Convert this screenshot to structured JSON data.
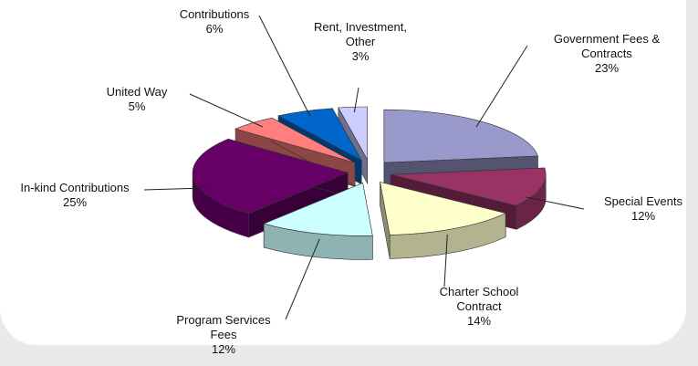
{
  "chart_data": {
    "type": "pie3d",
    "categories": [
      "Government Fees & Contracts",
      "Special Events",
      "Charter School Contract",
      "Program Services Fees",
      "In-kind Contributions",
      "United Way",
      "Contributions",
      "Rent, Investment, Other"
    ],
    "values": [
      23,
      12,
      14,
      12,
      25,
      5,
      6,
      3
    ],
    "value_labels": [
      "23%",
      "12%",
      "14%",
      "12%",
      "25%",
      "5%",
      "6%",
      "3%"
    ],
    "colors": [
      "#9999cc",
      "#993366",
      "#ffffcc",
      "#ccffff",
      "#660066",
      "#ff7f7f",
      "#0066cc",
      "#ccccff"
    ]
  }
}
